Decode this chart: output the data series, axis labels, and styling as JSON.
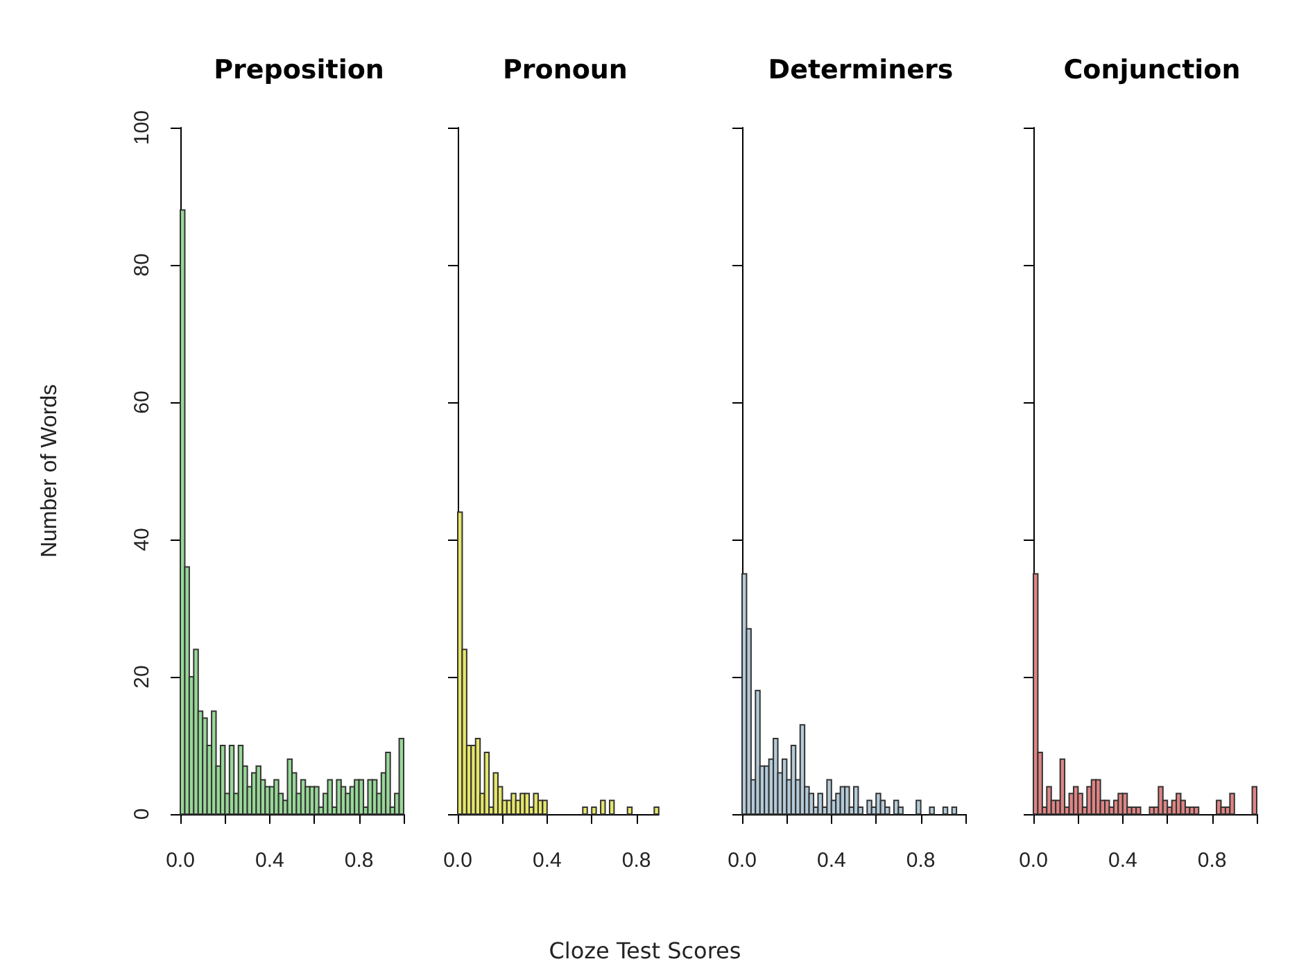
{
  "chart_data": [
    {
      "type": "histogram",
      "title": "Preposition",
      "ylabel": "Number of Words",
      "color": "#98d898",
      "bins": [
        0,
        0.02,
        0.04,
        0.06,
        0.08,
        0.1,
        0.12,
        0.14,
        0.16,
        0.18,
        0.2,
        0.22,
        0.24,
        0.26,
        0.28,
        0.3,
        0.32,
        0.34,
        0.36,
        0.38,
        0.4,
        0.42,
        0.44,
        0.46,
        0.48,
        0.5,
        0.52,
        0.54,
        0.56,
        0.58,
        0.6,
        0.62,
        0.64,
        0.66,
        0.68,
        0.7,
        0.72,
        0.74,
        0.76,
        0.78,
        0.8,
        0.82,
        0.84,
        0.86,
        0.88,
        0.9,
        0.92,
        0.94,
        0.96,
        0.98,
        1
      ],
      "values": [
        88,
        36,
        20,
        24,
        15,
        14,
        10,
        15,
        7,
        10,
        3,
        10,
        3,
        10,
        7,
        4,
        6,
        7,
        5,
        4,
        4,
        5,
        3,
        2,
        8,
        6,
        3,
        5,
        4,
        4,
        4,
        1,
        3,
        5,
        1,
        5,
        4,
        3,
        4,
        5,
        5,
        1,
        5,
        5,
        3,
        6,
        9,
        1,
        3,
        11
      ],
      "xlim": [
        0,
        1
      ],
      "xticks": [
        {
          "value": 0,
          "label": "0.0"
        },
        {
          "value": 0.2,
          "label": null
        },
        {
          "value": 0.4,
          "label": "0.4"
        },
        {
          "value": 0.6,
          "label": null
        },
        {
          "value": 0.8,
          "label": "0.8"
        },
        {
          "value": 1,
          "label": null
        }
      ],
      "ylim": [
        0,
        100
      ],
      "yticks": [
        0,
        20,
        40,
        60,
        80,
        100
      ]
    },
    {
      "type": "histogram",
      "title": "Pronoun",
      "color": "#e6e66a",
      "bins": [
        0,
        0.02,
        0.04,
        0.06,
        0.08,
        0.1,
        0.12,
        0.14,
        0.16,
        0.18,
        0.2,
        0.22,
        0.24,
        0.26,
        0.28,
        0.3,
        0.32,
        0.34,
        0.36,
        0.38,
        0.4,
        0.42,
        0.44,
        0.46,
        0.48,
        0.5,
        0.52,
        0.54,
        0.56,
        0.58,
        0.6,
        0.62,
        0.64,
        0.66,
        0.68,
        0.7,
        0.72,
        0.74,
        0.76,
        0.78,
        0.8,
        0.82,
        0.84,
        0.86,
        0.88,
        0.9
      ],
      "values": [
        44,
        24,
        10,
        10,
        11,
        3,
        9,
        1,
        6,
        4,
        2,
        2,
        3,
        2,
        3,
        3,
        1,
        3,
        2,
        2,
        0,
        0,
        0,
        0,
        0,
        0,
        0,
        0,
        1,
        0,
        1,
        0,
        2,
        0,
        2,
        0,
        0,
        0,
        1,
        0,
        0,
        0,
        0,
        0,
        1
      ],
      "xlim": [
        0,
        0.9
      ],
      "xticks": [
        {
          "value": 0,
          "label": "0.0"
        },
        {
          "value": 0.2,
          "label": null
        },
        {
          "value": 0.4,
          "label": "0.4"
        },
        {
          "value": 0.6,
          "label": null
        },
        {
          "value": 0.8,
          "label": "0.8"
        }
      ],
      "ylim": [
        0,
        100
      ],
      "yticks": [
        {
          "value": 0,
          "label": null
        },
        {
          "value": 20,
          "label": null
        },
        {
          "value": 40,
          "label": null
        },
        {
          "value": 60,
          "label": null
        },
        {
          "value": 80,
          "label": null
        },
        {
          "value": 100,
          "label": null
        }
      ],
      "tick_labels": "x"
    },
    {
      "type": "histogram",
      "title": "Determiners",
      "xlabel": "Cloze Test Scores",
      "color": "#b4cad8",
      "bins": [
        0,
        0.02,
        0.04,
        0.06,
        0.08,
        0.1,
        0.12,
        0.14,
        0.16,
        0.18,
        0.2,
        0.22,
        0.24,
        0.26,
        0.28,
        0.3,
        0.32,
        0.34,
        0.36,
        0.38,
        0.4,
        0.42,
        0.44,
        0.46,
        0.48,
        0.5,
        0.52,
        0.54,
        0.56,
        0.58,
        0.6,
        0.62,
        0.64,
        0.66,
        0.68,
        0.7,
        0.72,
        0.74,
        0.76,
        0.78,
        0.8,
        0.82,
        0.84,
        0.86,
        0.88,
        0.9,
        0.92,
        0.94,
        0.96
      ],
      "values": [
        35,
        27,
        5,
        18,
        7,
        7,
        8,
        11,
        6,
        8,
        5,
        10,
        5,
        13,
        4,
        3,
        1,
        3,
        1,
        5,
        2,
        3,
        4,
        4,
        1,
        4,
        1,
        0,
        2,
        1,
        3,
        2,
        1,
        0,
        2,
        1,
        0,
        0,
        0,
        2,
        0,
        0,
        1,
        0,
        0,
        1,
        0,
        1
      ],
      "xlim": [
        0,
        1
      ],
      "xticks": [
        {
          "value": 0,
          "label": "0.0"
        },
        {
          "value": 0.2,
          "label": null
        },
        {
          "value": 0.4,
          "label": "0.4"
        },
        {
          "value": 0.6,
          "label": null
        },
        {
          "value": 0.8,
          "label": "0.8"
        },
        {
          "value": 1,
          "label": null
        }
      ],
      "ylim": [
        0,
        100
      ],
      "yticks": [
        {
          "value": 0,
          "label": null
        },
        {
          "value": 20,
          "label": null
        },
        {
          "value": 40,
          "label": null
        },
        {
          "value": 60,
          "label": null
        },
        {
          "value": 80,
          "label": null
        },
        {
          "value": 100,
          "label": null
        }
      ],
      "tick_labels": "x"
    },
    {
      "type": "histogram",
      "title": "Conjunction",
      "color": "#e08484",
      "bins": [
        0,
        0.02,
        0.04,
        0.06,
        0.08,
        0.1,
        0.12,
        0.14,
        0.16,
        0.18,
        0.2,
        0.22,
        0.24,
        0.26,
        0.28,
        0.3,
        0.32,
        0.34,
        0.36,
        0.38,
        0.4,
        0.42,
        0.44,
        0.46,
        0.48,
        0.5,
        0.52,
        0.54,
        0.56,
        0.58,
        0.6,
        0.62,
        0.64,
        0.66,
        0.68,
        0.7,
        0.72,
        0.74,
        0.76,
        0.78,
        0.8,
        0.82,
        0.84,
        0.86,
        0.88,
        0.9,
        0.92,
        0.94,
        0.96,
        0.98,
        1
      ],
      "values": [
        35,
        9,
        1,
        4,
        2,
        2,
        8,
        1,
        3,
        4,
        3,
        1,
        4,
        5,
        5,
        2,
        2,
        1,
        2,
        3,
        3,
        1,
        1,
        1,
        0,
        0,
        1,
        1,
        4,
        2,
        1,
        2,
        3,
        2,
        1,
        1,
        1,
        0,
        0,
        0,
        0,
        2,
        1,
        1,
        3,
        0,
        0,
        0,
        0,
        4
      ],
      "xlim": [
        0,
        1
      ],
      "xticks": [
        {
          "value": 0,
          "label": "0.0"
        },
        {
          "value": 0.2,
          "label": null
        },
        {
          "value": 0.4,
          "label": "0.4"
        },
        {
          "value": 0.6,
          "label": null
        },
        {
          "value": 0.8,
          "label": "0.8"
        },
        {
          "value": 1,
          "label": null
        }
      ],
      "ylim": [
        0,
        100
      ],
      "yticks": [
        {
          "value": 0,
          "label": null
        },
        {
          "value": 20,
          "label": null
        },
        {
          "value": 40,
          "label": null
        },
        {
          "value": 60,
          "label": null
        },
        {
          "value": 80,
          "label": null
        },
        {
          "value": 100,
          "label": null
        }
      ],
      "tick_labels": "x"
    }
  ]
}
